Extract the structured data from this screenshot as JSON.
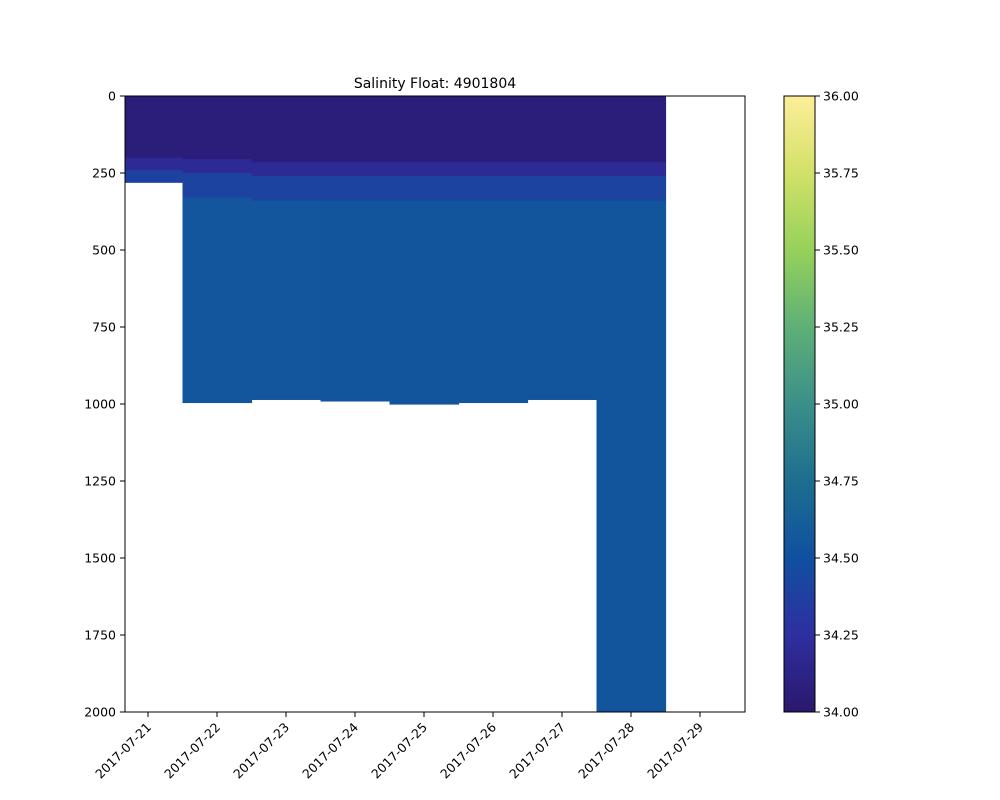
{
  "chart_data": {
    "type": "heatmap",
    "title": "Salinity Float: 4901804",
    "xlabel": "",
    "ylabel": "",
    "x_ticks": [
      "2017-07-21",
      "2017-07-22",
      "2017-07-23",
      "2017-07-24",
      "2017-07-25",
      "2017-07-26",
      "2017-07-27",
      "2017-07-28",
      "2017-07-29"
    ],
    "y_ticks": [
      0,
      250,
      500,
      750,
      1000,
      1250,
      1500,
      1750,
      2000
    ],
    "ylim": [
      2000,
      0
    ],
    "y_inverted": true,
    "colorbar": {
      "colormap": "haline",
      "range": [
        34.0,
        36.0
      ],
      "ticks": [
        "34.00",
        "34.25",
        "34.50",
        "34.75",
        "35.00",
        "35.25",
        "35.50",
        "35.75",
        "36.00"
      ],
      "colors": [
        "#2a186c",
        "#2e2fa0",
        "#1050a0",
        "#1d6e8f",
        "#3b8f89",
        "#5eb077",
        "#96d15a",
        "#d2e168",
        "#fdee99"
      ]
    },
    "profiles": [
      {
        "date": "2017-07-21",
        "max_depth": 280,
        "layers": [
          {
            "from": 0,
            "to": 200,
            "value": 34.07
          },
          {
            "from": 200,
            "to": 240,
            "value": 34.2
          },
          {
            "from": 240,
            "to": 280,
            "value": 34.38
          }
        ]
      },
      {
        "date": "2017-07-22",
        "max_depth": 995,
        "layers": [
          {
            "from": 0,
            "to": 205,
            "value": 34.07
          },
          {
            "from": 205,
            "to": 250,
            "value": 34.2
          },
          {
            "from": 250,
            "to": 330,
            "value": 34.4
          },
          {
            "from": 330,
            "to": 995,
            "value": 34.55
          }
        ]
      },
      {
        "date": "2017-07-23",
        "max_depth": 985,
        "layers": [
          {
            "from": 0,
            "to": 215,
            "value": 34.07
          },
          {
            "from": 215,
            "to": 260,
            "value": 34.2
          },
          {
            "from": 260,
            "to": 340,
            "value": 34.4
          },
          {
            "from": 340,
            "to": 985,
            "value": 34.55
          }
        ]
      },
      {
        "date": "2017-07-24",
        "max_depth": 990,
        "layers": [
          {
            "from": 0,
            "to": 215,
            "value": 34.07
          },
          {
            "from": 215,
            "to": 260,
            "value": 34.2
          },
          {
            "from": 260,
            "to": 340,
            "value": 34.4
          },
          {
            "from": 340,
            "to": 990,
            "value": 34.54
          }
        ]
      },
      {
        "date": "2017-07-25",
        "max_depth": 1000,
        "layers": [
          {
            "from": 0,
            "to": 215,
            "value": 34.07
          },
          {
            "from": 215,
            "to": 260,
            "value": 34.2
          },
          {
            "from": 260,
            "to": 340,
            "value": 34.4
          },
          {
            "from": 340,
            "to": 1000,
            "value": 34.54
          }
        ]
      },
      {
        "date": "2017-07-26",
        "max_depth": 995,
        "layers": [
          {
            "from": 0,
            "to": 215,
            "value": 34.07
          },
          {
            "from": 215,
            "to": 260,
            "value": 34.2
          },
          {
            "from": 260,
            "to": 340,
            "value": 34.4
          },
          {
            "from": 340,
            "to": 995,
            "value": 34.54
          }
        ]
      },
      {
        "date": "2017-07-27",
        "max_depth": 985,
        "layers": [
          {
            "from": 0,
            "to": 215,
            "value": 34.07
          },
          {
            "from": 215,
            "to": 260,
            "value": 34.2
          },
          {
            "from": 260,
            "to": 340,
            "value": 34.4
          },
          {
            "from": 340,
            "to": 985,
            "value": 34.54
          }
        ]
      },
      {
        "date": "2017-07-28",
        "max_depth": 2000,
        "layers": [
          {
            "from": 0,
            "to": 215,
            "value": 34.07
          },
          {
            "from": 215,
            "to": 260,
            "value": 34.2
          },
          {
            "from": 260,
            "to": 340,
            "value": 34.4
          },
          {
            "from": 340,
            "to": 2000,
            "value": 34.54
          }
        ]
      }
    ]
  }
}
